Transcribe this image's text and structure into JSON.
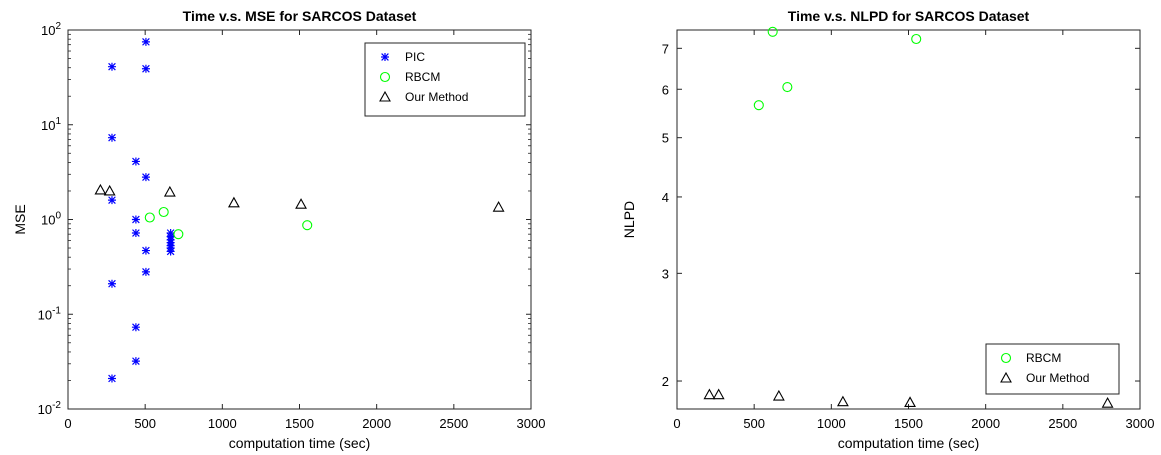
{
  "chart_data": [
    {
      "type": "scatter",
      "title": "Time v.s. MSE for SARCOS Dataset",
      "xlabel": "computation time (sec)",
      "ylabel": "MSE",
      "xlim": [
        0,
        3000
      ],
      "ylim": [
        0.01,
        100
      ],
      "yscale": "log",
      "xticks": [
        "0",
        "500",
        "1000",
        "1500",
        "2000",
        "2500",
        "3000"
      ],
      "yticks": [
        {
          "base": "10",
          "exp": "-2"
        },
        {
          "base": "10",
          "exp": "-1"
        },
        {
          "base": "10",
          "exp": "0"
        },
        {
          "base": "10",
          "exp": "1"
        },
        {
          "base": "10",
          "exp": "2"
        }
      ],
      "legend_position": "top-right",
      "series": [
        {
          "name": "PIC",
          "marker": "asterisk",
          "color": "#0000ff",
          "x": [
            285,
            285,
            285,
            285,
            285,
            440,
            440,
            440,
            440,
            440,
            505,
            505,
            505,
            505,
            505,
            665,
            665,
            665,
            665,
            665,
            665,
            665
          ],
          "y": [
            41,
            7.3,
            1.6,
            0.21,
            0.021,
            4.1,
            1.0,
            0.72,
            0.073,
            0.032,
            75,
            39,
            2.8,
            0.47,
            0.28,
            0.72,
            0.66,
            0.61,
            0.57,
            0.53,
            0.5,
            0.46
          ]
        },
        {
          "name": "RBCM",
          "marker": "circle",
          "color": "#00ff00",
          "x": [
            530,
            620,
            715,
            1550
          ],
          "y": [
            1.05,
            1.2,
            0.7,
            0.87
          ]
        },
        {
          "name": "Our Method",
          "marker": "triangle",
          "color": "#000000",
          "x": [
            210,
            270,
            660,
            1075,
            1510,
            2790
          ],
          "y": [
            2.05,
            2.0,
            1.95,
            1.5,
            1.45,
            1.35
          ]
        }
      ]
    },
    {
      "type": "scatter",
      "title": "Time v.s. NLPD for SARCOS Dataset",
      "xlabel": "computation time (sec)",
      "ylabel": "NLPD",
      "xlim": [
        0,
        3000
      ],
      "ylim": [
        1.8,
        7.5
      ],
      "yscale": "log",
      "xticks": [
        "0",
        "500",
        "1000",
        "1500",
        "2000",
        "2500",
        "3000"
      ],
      "yticks": [
        "2",
        "3",
        "4",
        "5",
        "6",
        "7"
      ],
      "legend_position": "bottom-right",
      "series": [
        {
          "name": "RBCM",
          "marker": "circle",
          "color": "#00ff00",
          "x": [
            530,
            620,
            715,
            1550
          ],
          "y": [
            5.65,
            7.45,
            6.05,
            7.25
          ]
        },
        {
          "name": "Our Method",
          "marker": "triangle",
          "color": "#000000",
          "x": [
            210,
            270,
            660,
            1075,
            1510,
            2790
          ],
          "y": [
            1.9,
            1.9,
            1.89,
            1.85,
            1.845,
            1.84
          ]
        }
      ]
    }
  ]
}
